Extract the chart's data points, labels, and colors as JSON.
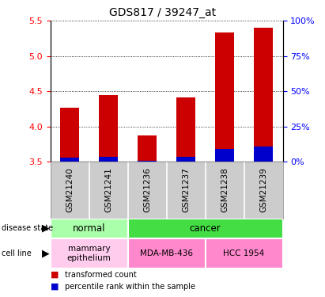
{
  "title": "GDS817 / 39247_at",
  "samples": [
    "GSM21240",
    "GSM21241",
    "GSM21236",
    "GSM21237",
    "GSM21238",
    "GSM21239"
  ],
  "red_values": [
    4.27,
    4.45,
    3.87,
    4.41,
    5.33,
    5.4
  ],
  "blue_values": [
    3.56,
    3.57,
    3.51,
    3.57,
    3.68,
    3.72
  ],
  "ymin": 3.5,
  "ymax": 5.5,
  "yticks": [
    3.5,
    4.0,
    4.5,
    5.0,
    5.5
  ],
  "right_yticks": [
    0,
    25,
    50,
    75,
    100
  ],
  "right_ytick_labels": [
    "0%",
    "25%",
    "50%",
    "75%",
    "100%"
  ],
  "disease_state": [
    {
      "label": "normal",
      "span": [
        0,
        2
      ],
      "color": "#AAFFAA"
    },
    {
      "label": "cancer",
      "span": [
        2,
        6
      ],
      "color": "#44DD44"
    }
  ],
  "cell_line": [
    {
      "label": "mammary\nepithelium",
      "span": [
        0,
        2
      ],
      "color": "#FFCCEE"
    },
    {
      "label": "MDA-MB-436",
      "span": [
        2,
        4
      ],
      "color": "#FF88CC"
    },
    {
      "label": "HCC 1954",
      "span": [
        4,
        6
      ],
      "color": "#FF88CC"
    }
  ],
  "bar_color_red": "#CC0000",
  "bar_color_blue": "#0000CC",
  "bar_width": 0.5,
  "grid_color": "black",
  "sample_bg_color": "#CCCCCC",
  "plot_bg": "white",
  "left_label_color": "red",
  "right_label_color": "blue",
  "title_fontsize": 10
}
